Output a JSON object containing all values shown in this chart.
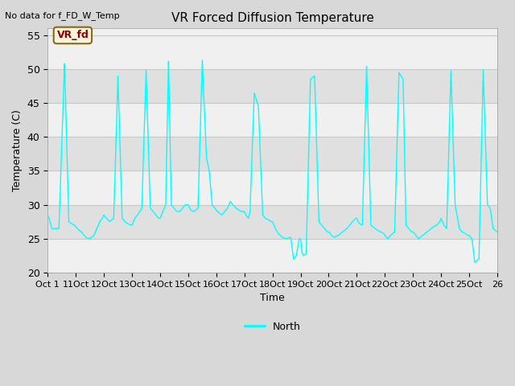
{
  "title": "VR Forced Diffusion Temperature",
  "top_left_text": "No data for f_FD_W_Temp",
  "xlabel": "Time",
  "ylabel": "Temperature (C)",
  "ylim": [
    20,
    56
  ],
  "yticks": [
    20,
    25,
    30,
    35,
    40,
    45,
    50,
    55
  ],
  "tick_labels": [
    "Oct 1",
    "11Oct",
    "12Oct",
    "13Oct",
    "14Oct",
    "15Oct",
    "16Oct",
    "17Oct",
    "18Oct",
    "19Oct",
    "20Oct",
    "21Oct",
    "22Oct",
    "23Oct",
    "24Oct",
    "25Oct",
    "26"
  ],
  "tick_positions": [
    0,
    1,
    2,
    3,
    4,
    5,
    6,
    7,
    8,
    9,
    10,
    11,
    12,
    13,
    14,
    15,
    16
  ],
  "line_color": "#00ffff",
  "line_label": "North",
  "fig_bg": "#d8d8d8",
  "plot_bg": "#f0f0f0",
  "band_light": "#f0f0f0",
  "band_dark": "#e0e0e0",
  "legend_text_color": "#8b0000",
  "legend_bg_color": "#f5f5dc",
  "legend_box_text": "VR_fd",
  "legend_edge_color": "#8b6914",
  "grid_color": "#c8c8c8",
  "x_data": [
    0.0,
    0.05,
    0.15,
    0.4,
    0.6,
    0.75,
    0.85,
    0.95,
    1.0,
    1.05,
    1.1,
    1.2,
    1.35,
    1.5,
    1.65,
    1.75,
    1.85,
    1.95,
    2.0,
    2.05,
    2.1,
    2.2,
    2.35,
    2.5,
    2.65,
    2.75,
    2.85,
    2.95,
    3.0,
    3.05,
    3.1,
    3.2,
    3.35,
    3.5,
    3.65,
    3.75,
    3.85,
    3.95,
    4.0,
    4.05,
    4.1,
    4.15,
    4.2,
    4.3,
    4.4,
    4.5,
    4.55,
    4.6,
    4.7,
    4.8,
    4.9,
    5.0,
    5.05,
    5.1,
    5.2,
    5.35,
    5.5,
    5.65,
    5.75,
    5.85,
    5.95,
    6.0,
    6.05,
    6.1,
    6.2,
    6.3,
    6.4,
    6.5,
    6.55,
    6.6,
    6.7,
    6.8,
    6.9,
    7.0,
    7.05,
    7.1,
    7.15,
    7.2,
    7.35,
    7.5,
    7.65,
    7.75,
    7.85,
    7.95,
    8.0,
    8.05,
    8.1,
    8.2,
    8.35,
    8.5,
    8.65,
    8.75,
    8.85,
    8.95,
    9.0,
    9.05,
    9.1,
    9.2,
    9.35,
    9.5,
    9.65,
    9.75,
    9.85,
    9.95,
    10.0,
    10.05,
    10.1,
    10.2,
    10.35,
    10.5,
    10.65,
    10.75,
    10.85,
    10.95,
    11.0,
    11.05,
    11.1,
    11.2,
    11.35,
    11.5,
    11.65,
    11.75,
    11.85,
    11.95,
    12.0,
    12.05,
    12.1,
    12.2,
    12.35,
    12.5,
    12.65,
    12.75,
    12.85,
    12.95,
    13.0,
    13.05,
    13.1,
    13.2,
    13.35,
    13.5,
    13.65,
    13.75,
    13.85,
    13.95,
    14.0,
    14.05,
    14.1,
    14.2,
    14.35,
    14.5,
    14.65,
    14.75,
    14.85,
    14.95,
    15.0,
    15.05,
    15.1,
    15.2,
    15.35,
    15.5,
    15.65,
    15.75,
    15.85,
    15.95,
    16.0
  ],
  "y_data": [
    28.5,
    28.0,
    26.5,
    26.5,
    51.0,
    27.5,
    27.2,
    27.0,
    26.8,
    26.5,
    26.3,
    26.0,
    25.2,
    25.0,
    25.5,
    26.5,
    27.5,
    28.0,
    28.5,
    28.2,
    28.0,
    27.5,
    28.0,
    49.0,
    28.0,
    27.5,
    27.2,
    27.0,
    27.0,
    27.5,
    28.0,
    28.5,
    29.5,
    50.0,
    29.5,
    29.0,
    28.5,
    28.0,
    28.0,
    28.5,
    29.0,
    29.5,
    30.0,
    51.5,
    30.0,
    29.5,
    29.2,
    29.0,
    29.0,
    29.5,
    30.0,
    30.0,
    29.5,
    29.2,
    29.0,
    29.5,
    51.5,
    37.0,
    35.0,
    30.0,
    29.5,
    29.2,
    29.0,
    28.8,
    28.5,
    29.0,
    29.5,
    30.5,
    30.2,
    30.0,
    29.5,
    29.2,
    29.0,
    29.0,
    28.5,
    28.2,
    28.0,
    29.0,
    46.5,
    44.5,
    28.5,
    28.0,
    27.8,
    27.5,
    27.5,
    27.0,
    26.5,
    25.8,
    25.2,
    25.0,
    25.2,
    22.0,
    22.5,
    25.0,
    25.0,
    23.0,
    22.5,
    22.8,
    48.5,
    49.0,
    27.5,
    27.0,
    26.5,
    26.0,
    26.0,
    25.8,
    25.5,
    25.2,
    25.5,
    26.0,
    26.5,
    27.0,
    27.5,
    28.0,
    28.0,
    27.5,
    27.2,
    27.0,
    50.5,
    27.0,
    26.5,
    26.2,
    26.0,
    25.8,
    25.5,
    25.2,
    25.0,
    25.5,
    26.0,
    49.5,
    48.5,
    27.0,
    26.5,
    26.0,
    26.0,
    25.8,
    25.5,
    25.0,
    25.5,
    26.0,
    26.5,
    26.8,
    27.0,
    27.5,
    28.0,
    27.5,
    27.0,
    26.5,
    50.0,
    30.0,
    26.5,
    26.0,
    25.8,
    25.5,
    25.5,
    25.2,
    25.0,
    21.5,
    22.0,
    50.0,
    30.0,
    29.5,
    26.5,
    26.2,
    26.0
  ]
}
